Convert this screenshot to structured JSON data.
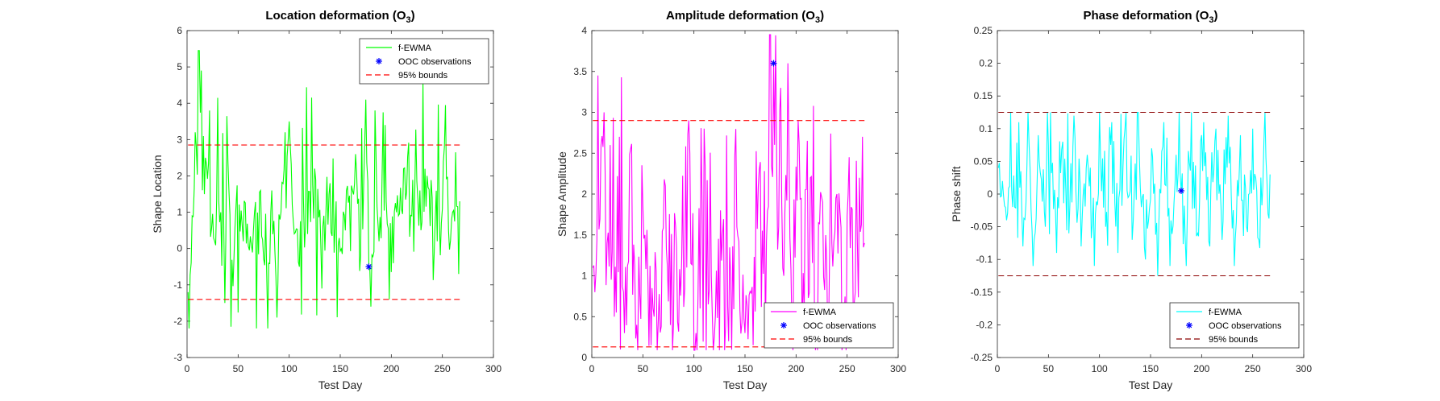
{
  "chart_data": [
    {
      "type": "line",
      "title": "Location deformation",
      "title_sub": "3",
      "title_o": "(O",
      "xlabel": "Test Day",
      "ylabel": "Shape Location",
      "xlim": [
        0,
        300
      ],
      "ylim": [
        -3,
        6
      ],
      "xticks": [
        0,
        50,
        100,
        150,
        200,
        250,
        300
      ],
      "yticks": [
        -3,
        -2,
        -1,
        0,
        1,
        2,
        3,
        4,
        5,
        6
      ],
      "ytick_labels": [
        "-3",
        "-2",
        "-1",
        "0",
        "1",
        "2",
        "3",
        "4",
        "5",
        "6"
      ],
      "legend_position": "top-right",
      "legend": [
        "f-EWMA",
        "OOC observations",
        "95% bounds"
      ],
      "colors": {
        "series": "#00ff00",
        "ooc": "#0000ff",
        "bounds": "#ff0000"
      },
      "bounds": [
        2.85,
        -1.4
      ],
      "ooc": [
        {
          "x": 178,
          "y": -0.5
        }
      ],
      "series": {
        "name": "f-EWMA",
        "n": 267,
        "seed": 11,
        "center": 0.6,
        "spread": 1.1,
        "spike_prob": 0.13,
        "spike_amp": 3.2,
        "min": -2.2,
        "max": 5.45,
        "anchors": [
          [
            1,
            -1.2
          ],
          [
            5,
            0.9
          ],
          [
            8,
            3.2
          ],
          [
            11,
            5.45
          ],
          [
            14,
            4.9
          ],
          [
            18,
            2.5
          ],
          [
            22,
            3.8
          ],
          [
            27,
            0.2
          ],
          [
            30,
            4.15
          ],
          [
            33,
            1.0
          ],
          [
            37,
            -1.5
          ],
          [
            40,
            2.4
          ],
          [
            43,
            -2.15
          ],
          [
            48,
            1.2
          ],
          [
            55,
            0.2
          ],
          [
            63,
            0.1
          ],
          [
            72,
            1.6
          ],
          [
            78,
            -0.7
          ],
          [
            83,
            1.6
          ],
          [
            88,
            -1.9
          ],
          [
            91,
            0.8
          ],
          [
            96,
            3.2
          ],
          [
            100,
            3.5
          ],
          [
            103,
            1.2
          ],
          [
            110,
            -0.5
          ],
          [
            118,
            0.4
          ],
          [
            125,
            2.2
          ],
          [
            132,
            -1.1
          ],
          [
            140,
            1.8
          ],
          [
            148,
            0.1
          ],
          [
            155,
            0.5
          ],
          [
            162,
            1.6
          ],
          [
            165,
            2.6
          ],
          [
            170,
            -0.2
          ],
          [
            175,
            4.1
          ],
          [
            178,
            -0.5
          ],
          [
            180,
            -1.6
          ],
          [
            184,
            3.8
          ],
          [
            188,
            0.2
          ],
          [
            192,
            3.75
          ],
          [
            198,
            -1.4
          ],
          [
            205,
            1.0
          ],
          [
            212,
            2.2
          ],
          [
            220,
            0.9
          ],
          [
            228,
            1.6
          ],
          [
            235,
            2.0
          ],
          [
            240,
            1.4
          ],
          [
            245,
            0.2
          ],
          [
            250,
            1.1
          ],
          [
            253,
            3.95
          ],
          [
            256,
            0.5
          ],
          [
            260,
            1.0
          ],
          [
            263,
            2.65
          ],
          [
            266,
            -0.7
          ],
          [
            267,
            1.3
          ]
        ]
      }
    },
    {
      "type": "line",
      "title": "Amplitude deformation",
      "title_sub": "3",
      "title_o": "(O",
      "xlabel": "Test Day",
      "ylabel": "Shape Amplitude",
      "xlim": [
        0,
        300
      ],
      "ylim": [
        0,
        4
      ],
      "xticks": [
        0,
        50,
        100,
        150,
        200,
        250,
        300
      ],
      "yticks": [
        0,
        0.5,
        1,
        1.5,
        2,
        2.5,
        3,
        3.5,
        4
      ],
      "ytick_labels": [
        "0",
        "0.5",
        "1",
        "1.5",
        "2",
        "2.5",
        "3",
        "3.5",
        "4"
      ],
      "legend_position": "bottom-right",
      "legend": [
        "f-EWMA",
        "OOC observations",
        "95% bounds"
      ],
      "colors": {
        "series": "#ff00ff",
        "ooc": "#0000ff",
        "bounds": "#ff0000"
      },
      "bounds": [
        2.9,
        0.13
      ],
      "ooc": [
        {
          "x": 178,
          "y": 3.6
        }
      ],
      "series": {
        "name": "f-EWMA",
        "n": 267,
        "seed": 23,
        "center": 1.1,
        "spread": 0.8,
        "spike_prob": 0.16,
        "spike_amp": 1.6,
        "min": 0.09,
        "max": 3.95,
        "anchors": [
          [
            1,
            1.1
          ],
          [
            3,
            0.8
          ],
          [
            6,
            3.45
          ],
          [
            9,
            2.6
          ],
          [
            12,
            3.0
          ],
          [
            15,
            1.4
          ],
          [
            18,
            2.6
          ],
          [
            22,
            0.5
          ],
          [
            27,
            2.7
          ],
          [
            32,
            0.3
          ],
          [
            38,
            2.55
          ],
          [
            44,
            0.4
          ],
          [
            52,
            1.5
          ],
          [
            58,
            0.15
          ],
          [
            65,
            0.4
          ],
          [
            72,
            2.1
          ],
          [
            80,
            0.4
          ],
          [
            88,
            1.2
          ],
          [
            96,
            2.5
          ],
          [
            102,
            0.3
          ],
          [
            110,
            2.8
          ],
          [
            118,
            0.5
          ],
          [
            126,
            1.8
          ],
          [
            134,
            0.2
          ],
          [
            142,
            1.6
          ],
          [
            150,
            0.3
          ],
          [
            158,
            0.15
          ],
          [
            164,
            2.3
          ],
          [
            170,
            0.2
          ],
          [
            175,
            3.95
          ],
          [
            178,
            3.6
          ],
          [
            181,
            2.4
          ],
          [
            185,
            3.3
          ],
          [
            188,
            1.0
          ],
          [
            192,
            3.6
          ],
          [
            196,
            0.3
          ],
          [
            202,
            2.9
          ],
          [
            208,
            0.6
          ],
          [
            214,
            2.2
          ],
          [
            220,
            0.4
          ],
          [
            226,
            1.9
          ],
          [
            232,
            0.5
          ],
          [
            240,
            2.0
          ],
          [
            246,
            0.3
          ],
          [
            252,
            2.45
          ],
          [
            258,
            0.8
          ],
          [
            262,
            2.2
          ],
          [
            265,
            2.7
          ],
          [
            267,
            1.4
          ]
        ]
      }
    },
    {
      "type": "line",
      "title": "Phase deformation",
      "title_sub": "3",
      "title_o": "(O",
      "xlabel": "Test Day",
      "ylabel": "Phase shift",
      "xlim": [
        0,
        300
      ],
      "ylim": [
        -0.25,
        0.25
      ],
      "xticks": [
        0,
        50,
        100,
        150,
        200,
        250,
        300
      ],
      "yticks": [
        -0.25,
        -0.2,
        -0.15,
        -0.1,
        -0.05,
        0,
        0.05,
        0.1,
        0.15,
        0.2,
        0.25
      ],
      "ytick_labels": [
        "-0.25",
        "-0.2",
        "-0.15",
        "-0.1",
        "-0.05",
        "0",
        "0.05",
        "0.1",
        "0.15",
        "0.2",
        "0.25"
      ],
      "legend_position": "bottom-right",
      "legend": [
        "f-EWMA",
        "OOC observations",
        "95% bounds"
      ],
      "colors": {
        "series": "#00ffff",
        "ooc": "#0000ff",
        "bounds": "#8b0000"
      },
      "bounds": [
        0.125,
        -0.125
      ],
      "ooc": [
        {
          "x": 180,
          "y": 0.005
        }
      ],
      "series": {
        "name": "f-EWMA",
        "n": 267,
        "seed": 37,
        "center": 0.0,
        "spread": 0.05,
        "spike_prob": 0.2,
        "spike_amp": 0.11,
        "min": -0.125,
        "max": 0.125,
        "anchors": [
          [
            1,
            0.04
          ],
          [
            5,
            0.02
          ],
          [
            9,
            -0.04
          ],
          [
            13,
            0.125
          ],
          [
            17,
            -0.02
          ],
          [
            21,
            0.11
          ],
          [
            25,
            -0.08
          ],
          [
            30,
            0.125
          ],
          [
            35,
            -0.11
          ],
          [
            40,
            0.09
          ],
          [
            47,
            -0.05
          ],
          [
            52,
            0.125
          ],
          [
            58,
            -0.09
          ],
          [
            64,
            0.08
          ],
          [
            70,
            -0.06
          ],
          [
            75,
            0.12
          ],
          [
            82,
            -0.08
          ],
          [
            88,
            0.06
          ],
          [
            95,
            -0.11
          ],
          [
            100,
            0.125
          ],
          [
            106,
            -0.05
          ],
          [
            112,
            0.11
          ],
          [
            118,
            -0.09
          ],
          [
            125,
            0.1
          ],
          [
            132,
            -0.07
          ],
          [
            138,
            0.125
          ],
          [
            145,
            -0.1
          ],
          [
            151,
            0.07
          ],
          [
            157,
            -0.125
          ],
          [
            163,
            0.11
          ],
          [
            169,
            -0.11
          ],
          [
            175,
            0.06
          ],
          [
            180,
            0.005
          ],
          [
            185,
            -0.11
          ],
          [
            190,
            0.125
          ],
          [
            196,
            -0.06
          ],
          [
            202,
            0.11
          ],
          [
            208,
            -0.08
          ],
          [
            214,
            0.1
          ],
          [
            220,
            -0.07
          ],
          [
            226,
            0.12
          ],
          [
            232,
            -0.11
          ],
          [
            238,
            0.09
          ],
          [
            244,
            -0.05
          ],
          [
            250,
            0.1
          ],
          [
            256,
            -0.07
          ],
          [
            262,
            0.125
          ],
          [
            265,
            -0.03
          ],
          [
            267,
            0.03
          ]
        ]
      }
    }
  ]
}
